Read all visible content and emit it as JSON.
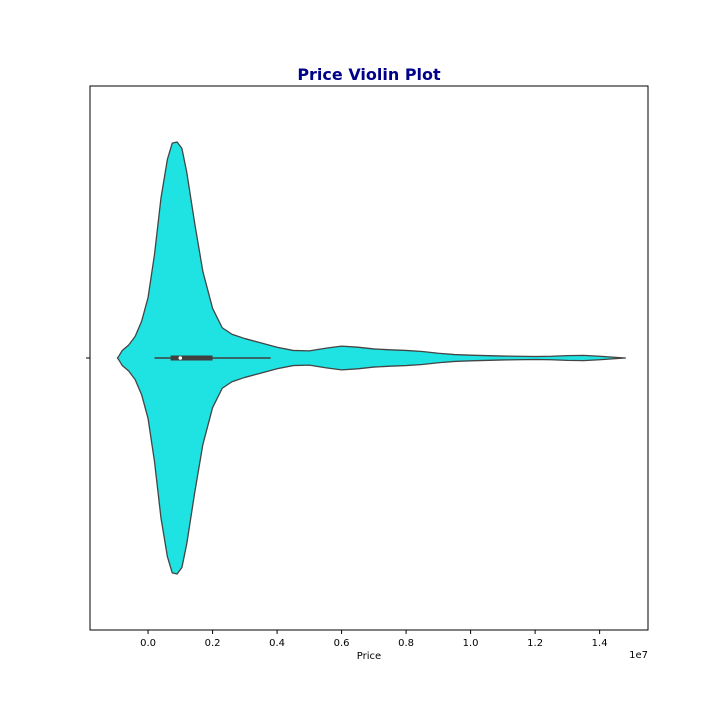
{
  "chart_data": {
    "type": "violin",
    "title": "Price Violin Plot",
    "xlabel": "Price",
    "ylabel": "",
    "x_scale_label": "1e7",
    "xlim": [
      -1800000,
      15500000
    ],
    "x_ticks": [
      0.0,
      0.2,
      0.4,
      0.6,
      0.8,
      1.0,
      1.2,
      1.4
    ],
    "x_tick_labels": [
      "0.0",
      "0.2",
      "0.4",
      "0.6",
      "0.8",
      "1.0",
      "1.2",
      "1.4"
    ],
    "x_tick_multiplier": 10000000,
    "grid": false,
    "colors": {
      "title": "#00008b",
      "violin_fill": "#1fe2e2",
      "outline": "#444444",
      "box": "#3f3f3f",
      "median": "#ffffff",
      "frame": "#000000"
    },
    "density_profile": {
      "note_units": "x in price units, width as fraction of max half-width",
      "points": [
        [
          -950000,
          0.0
        ],
        [
          -900000,
          0.01
        ],
        [
          -800000,
          0.035
        ],
        [
          -600000,
          0.06
        ],
        [
          -400000,
          0.1
        ],
        [
          -200000,
          0.17
        ],
        [
          0,
          0.28
        ],
        [
          200000,
          0.48
        ],
        [
          400000,
          0.74
        ],
        [
          600000,
          0.92
        ],
        [
          750000,
          0.995
        ],
        [
          900000,
          1.0
        ],
        [
          1050000,
          0.97
        ],
        [
          1200000,
          0.86
        ],
        [
          1450000,
          0.62
        ],
        [
          1700000,
          0.4
        ],
        [
          2000000,
          0.23
        ],
        [
          2300000,
          0.14
        ],
        [
          2600000,
          0.11
        ],
        [
          3000000,
          0.09
        ],
        [
          3500000,
          0.07
        ],
        [
          4000000,
          0.05
        ],
        [
          4500000,
          0.035
        ],
        [
          5000000,
          0.033
        ],
        [
          5500000,
          0.045
        ],
        [
          6000000,
          0.055
        ],
        [
          6500000,
          0.05
        ],
        [
          7000000,
          0.042
        ],
        [
          7500000,
          0.038
        ],
        [
          8000000,
          0.035
        ],
        [
          8500000,
          0.03
        ],
        [
          9000000,
          0.022
        ],
        [
          9500000,
          0.016
        ],
        [
          10000000,
          0.013
        ],
        [
          11000000,
          0.009
        ],
        [
          12000000,
          0.007
        ],
        [
          12500000,
          0.008
        ],
        [
          13000000,
          0.011
        ],
        [
          13500000,
          0.012
        ],
        [
          14000000,
          0.008
        ],
        [
          14500000,
          0.003
        ],
        [
          14800000,
          0.0
        ]
      ]
    },
    "box": {
      "whisker_low": 200000,
      "q1": 700000,
      "median": 1000000,
      "q3": 2000000,
      "whisker_high": 3800000
    }
  }
}
